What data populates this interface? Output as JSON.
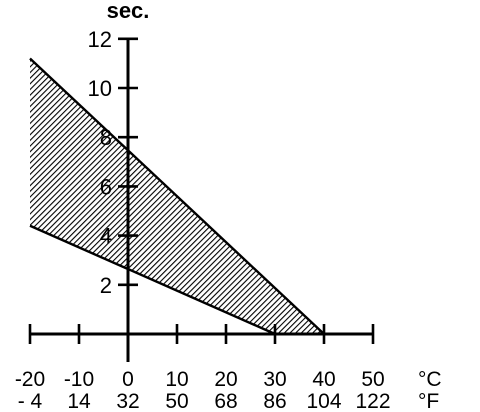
{
  "chart_data": {
    "type": "area",
    "title": "sec.",
    "xlabel": "",
    "ylabel": "sec.",
    "xlim": [
      -20,
      50
    ],
    "ylim": [
      0,
      12
    ],
    "grid": false,
    "x_unit_primary": "°C",
    "x_unit_secondary": "°F",
    "x_ticks_celsius": [
      "-20",
      "-10",
      "0",
      "10",
      "20",
      "30",
      "40",
      "50"
    ],
    "x_ticks_fahrenheit": [
      "- 4",
      "14",
      "32",
      "50",
      "68",
      "86",
      "104",
      "122"
    ],
    "y_ticks": [
      "2",
      "4",
      "6",
      "8",
      "10",
      "12"
    ],
    "band": {
      "upper": {
        "x": [
          -20,
          40
        ],
        "y": [
          11.2,
          0
        ]
      },
      "lower": {
        "x": [
          -20,
          30
        ],
        "y": [
          4.4,
          0
        ]
      },
      "fill": "hatched"
    }
  }
}
